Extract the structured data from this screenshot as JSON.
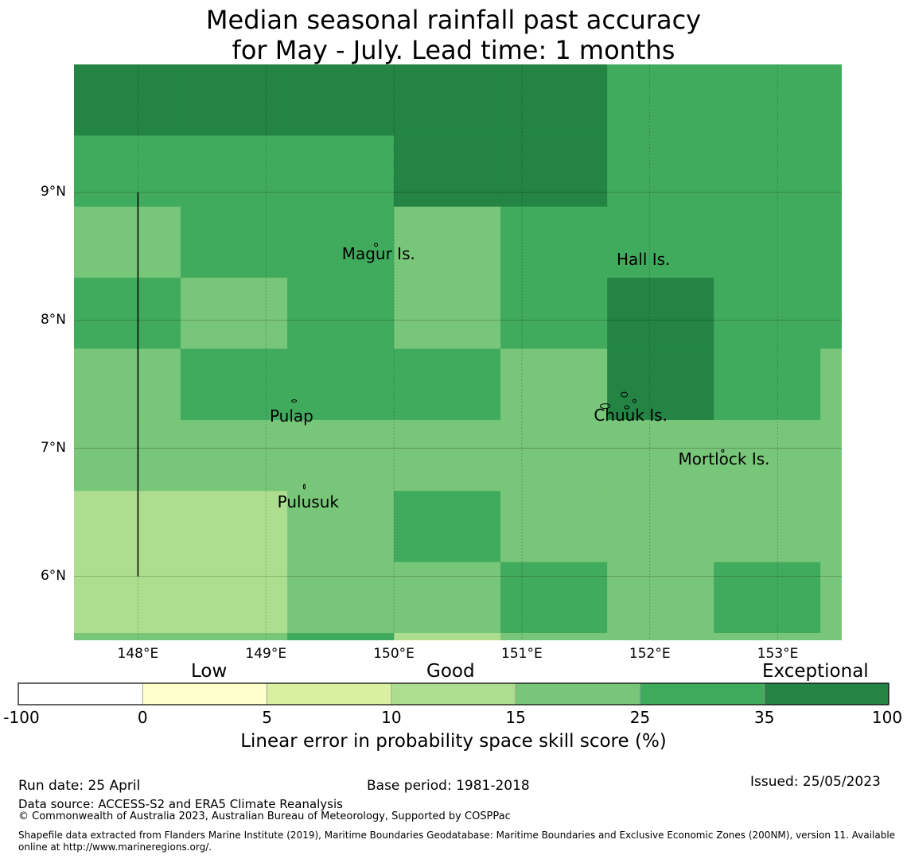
{
  "title": {
    "line1": "Median seasonal rainfall past accuracy",
    "line2": "for May - July. Lead time: 1 months"
  },
  "map": {
    "lon_range": [
      147.5,
      153.5
    ],
    "lat_range": [
      5.5,
      10.0
    ],
    "grid_lines": true,
    "lon_ticks": [
      {
        "value": 148,
        "label": "148°E"
      },
      {
        "value": 149,
        "label": "149°E"
      },
      {
        "value": 150,
        "label": "150°E"
      },
      {
        "value": 151,
        "label": "151°E"
      },
      {
        "value": 152,
        "label": "152°E"
      },
      {
        "value": 153,
        "label": "153°E"
      }
    ],
    "lat_ticks": [
      {
        "value": 9,
        "label": "9°N"
      },
      {
        "value": 8,
        "label": "8°N"
      },
      {
        "value": 7,
        "label": "7°N"
      },
      {
        "value": 6,
        "label": "6°N"
      }
    ],
    "grid_lon_edges": [
      147.5,
      148.333,
      149.167,
      150.0,
      150.833,
      151.667,
      152.5,
      153.333,
      153.5
    ],
    "grid_lat_edges": [
      10.0,
      9.444,
      8.889,
      8.333,
      7.778,
      7.222,
      6.667,
      6.111,
      5.556,
      5.5
    ],
    "skill_class_grid": [
      [
        6,
        6,
        6,
        6,
        6,
        5,
        5,
        5,
        5
      ],
      [
        5,
        5,
        5,
        6,
        6,
        5,
        5,
        5,
        5
      ],
      [
        4,
        5,
        5,
        4,
        5,
        5,
        5,
        5,
        5
      ],
      [
        5,
        4,
        5,
        4,
        5,
        6,
        5,
        5,
        5
      ],
      [
        4,
        5,
        5,
        5,
        4,
        6,
        5,
        4,
        4
      ],
      [
        4,
        4,
        4,
        4,
        4,
        4,
        4,
        4,
        4
      ],
      [
        3,
        3,
        4,
        5,
        4,
        4,
        4,
        4,
        4
      ],
      [
        3,
        3,
        4,
        4,
        5,
        4,
        5,
        4,
        4
      ],
      [
        4,
        4,
        5,
        3,
        4,
        4,
        4,
        4,
        4
      ]
    ],
    "places": [
      {
        "name": "Magur Is.",
        "lon": 149.88,
        "lat": 8.52
      },
      {
        "name": "Hall Is.",
        "lon": 151.95,
        "lat": 8.48
      },
      {
        "name": "Pulap",
        "lon": 149.2,
        "lat": 7.25
      },
      {
        "name": "Chuuk Is.",
        "lon": 151.85,
        "lat": 7.26
      },
      {
        "name": "Mortlock Is.",
        "lon": 152.58,
        "lat": 6.92
      },
      {
        "name": "Pulusuk",
        "lon": 149.33,
        "lat": 6.58
      }
    ],
    "boundary_line": {
      "lon": 148.0,
      "lat_from": 9.0,
      "lat_to": 6.0
    }
  },
  "colorbar": {
    "category_labels": [
      "Low",
      "Good",
      "Exceptional"
    ],
    "tick_labels": [
      "-100",
      "0",
      "5",
      "10",
      "15",
      "25",
      "35",
      "100"
    ],
    "bin_colors": [
      "#ffffff",
      "#ffffcc",
      "#d9f0a3",
      "#addd8e",
      "#78c679",
      "#41ab5d",
      "#238443"
    ],
    "label": "Linear error in probability space skill score (%)"
  },
  "footer": {
    "run_date": "Run date: 25 April",
    "base_period": "Base period: 1981-2018",
    "issued": "Issued: 25/05/2023",
    "data_source": "Data source: ACCESS-S2 and ERA5 Climate Reanalysis",
    "copyright": "© Commonwealth of Australia 2023, Australian Bureau of Meteorology, Supported by COSPPac",
    "shapefile_line1": "Shapefile data extracted from Flanders Marine Institute (2019), Maritime Boundaries Geodatabase: Maritime Boundaries and Exclusive Economic Zones (200NM), version 11. Available",
    "shapefile_line2": "online at http://www.marineregions.org/."
  }
}
